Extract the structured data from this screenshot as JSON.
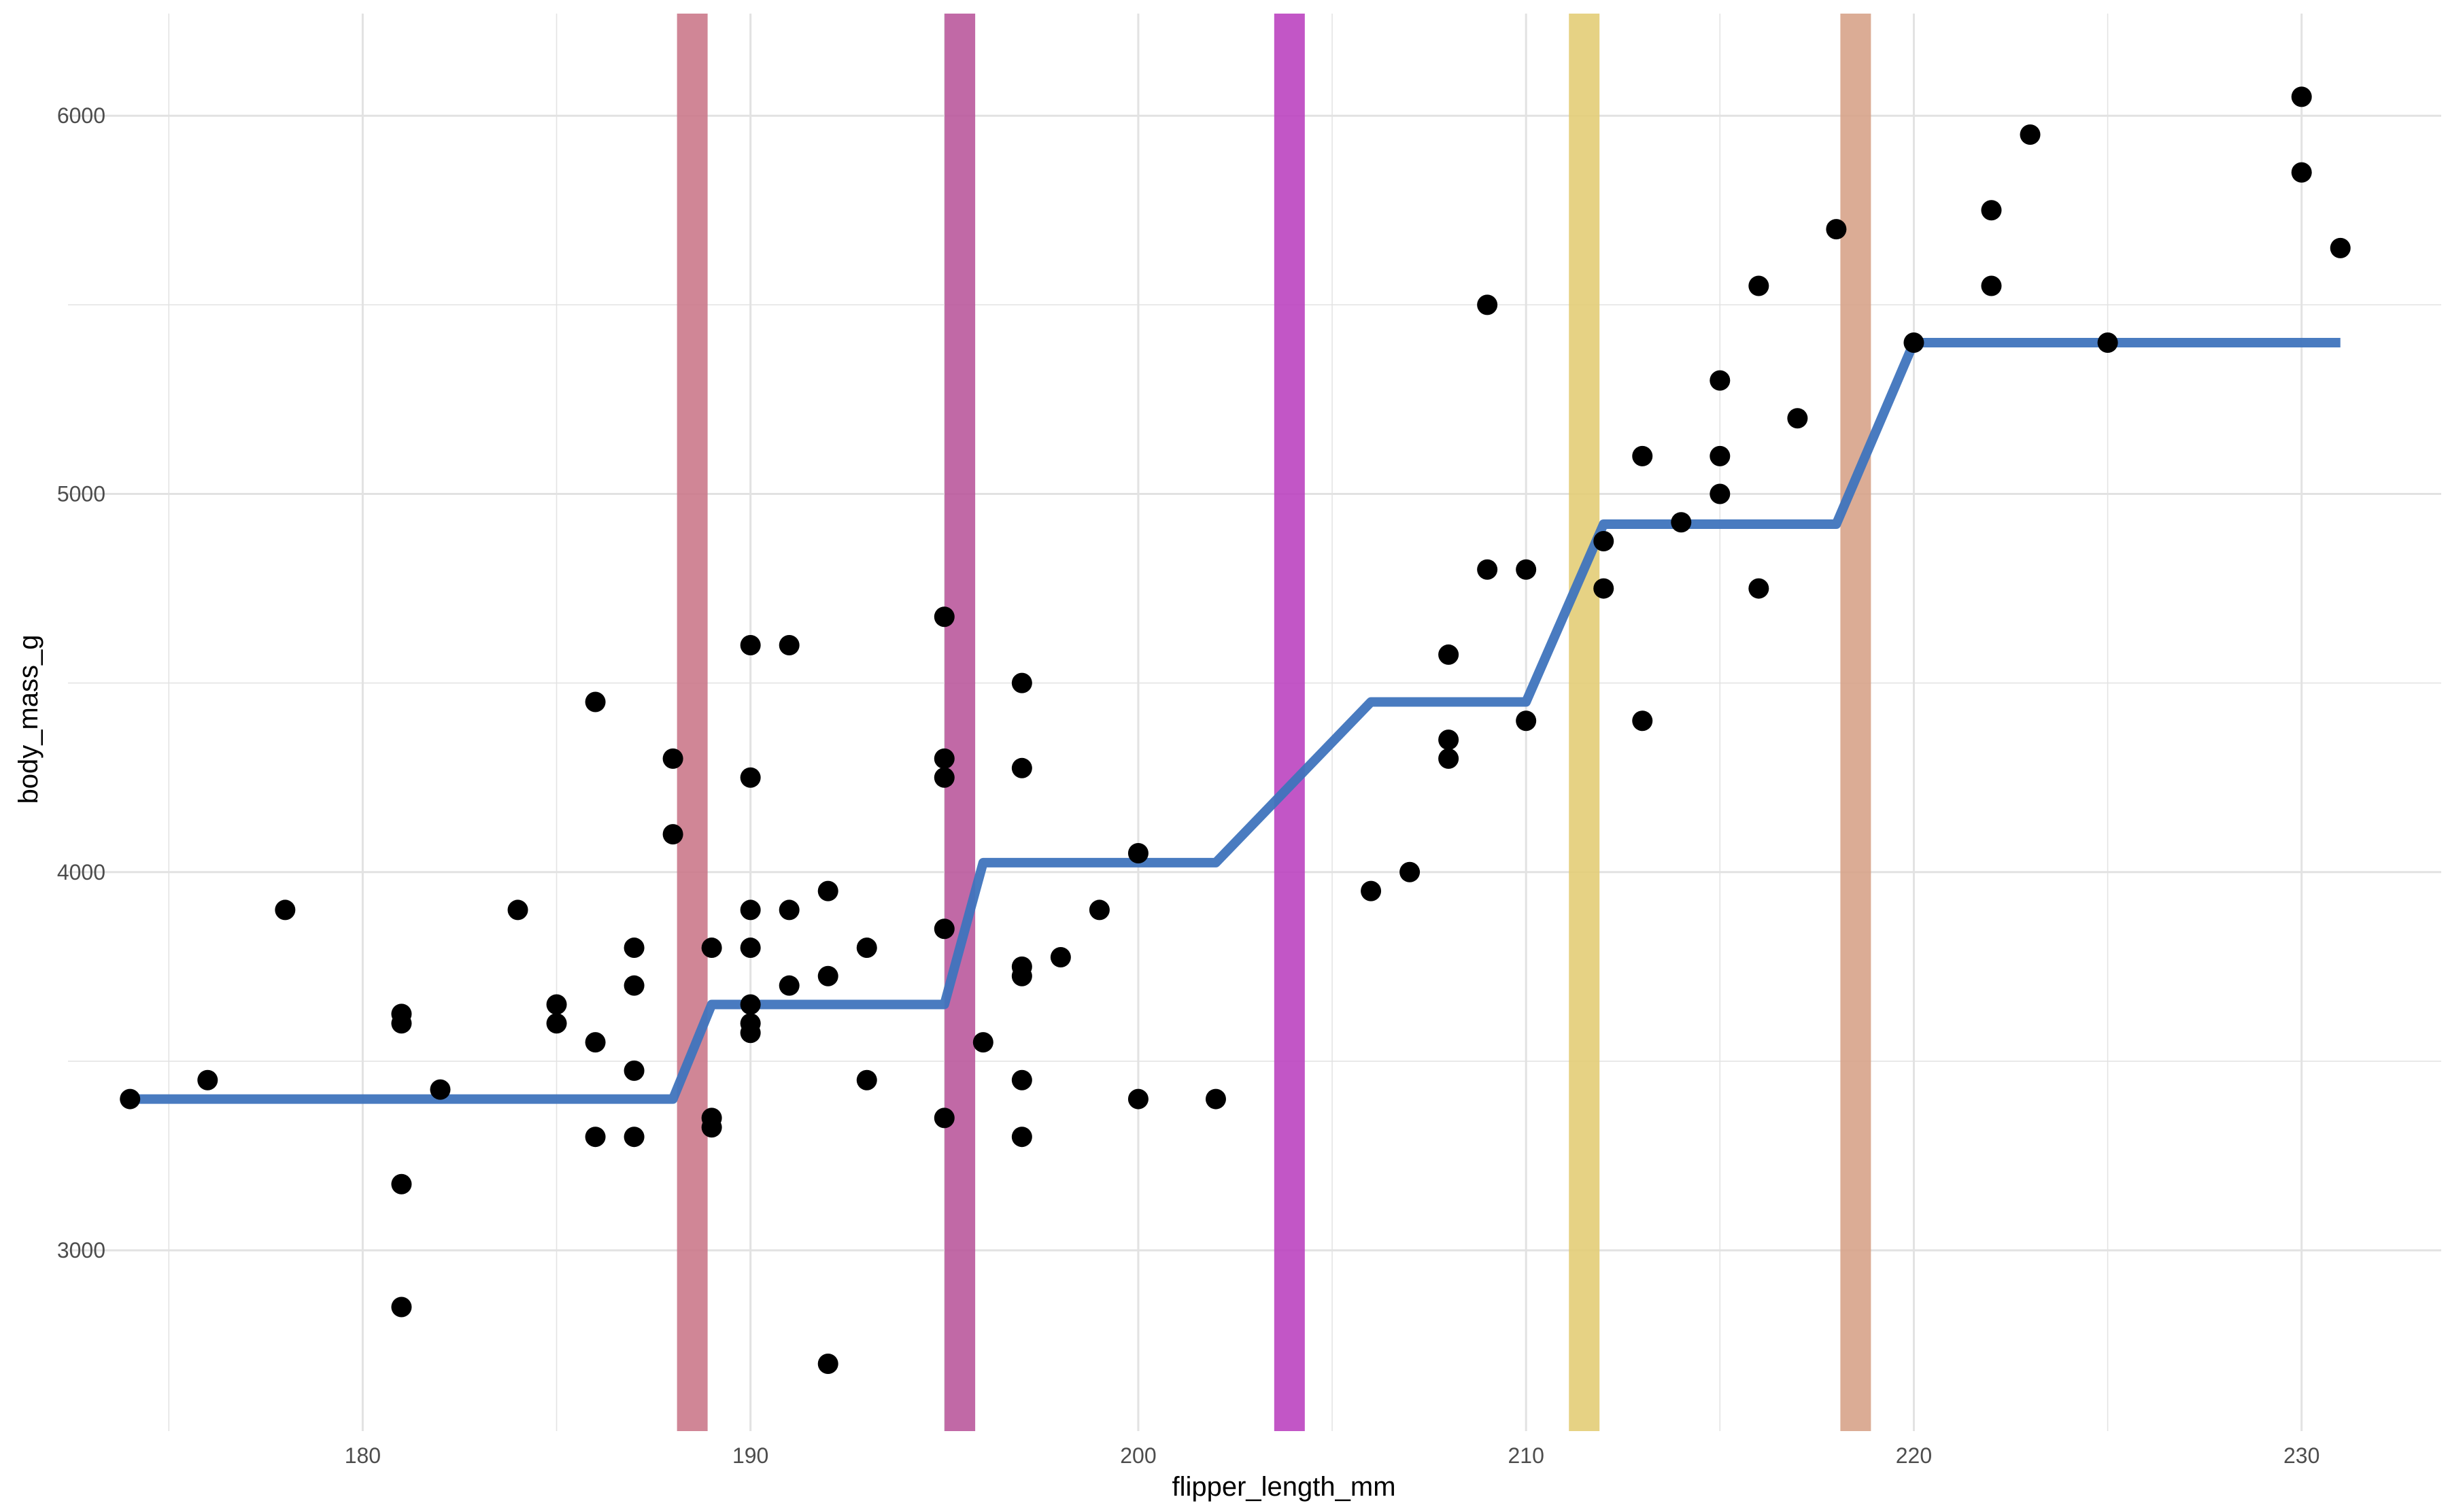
{
  "chart_data": {
    "type": "scatter",
    "title": "",
    "xlabel": "flipper_length_mm",
    "ylabel": "body_mass_g",
    "xlim": [
      172.4,
      233.6
    ],
    "ylim": [
      2522,
      6270
    ],
    "x_ticks": [
      180,
      190,
      200,
      210,
      220,
      230
    ],
    "y_ticks": [
      3000,
      4000,
      5000,
      6000
    ],
    "grid": true,
    "legend": "none",
    "points": [
      [
        174,
        3400
      ],
      [
        176,
        3450
      ],
      [
        178,
        3900
      ],
      [
        181,
        3625
      ],
      [
        181,
        3600
      ],
      [
        181,
        3175
      ],
      [
        181,
        2850
      ],
      [
        182,
        3425
      ],
      [
        184,
        3900
      ],
      [
        185,
        3650
      ],
      [
        185,
        3600
      ],
      [
        186,
        4450
      ],
      [
        186,
        3550
      ],
      [
        186,
        3300
      ],
      [
        187,
        3800
      ],
      [
        187,
        3700
      ],
      [
        187,
        3475
      ],
      [
        187,
        3300
      ],
      [
        188,
        4300
      ],
      [
        188,
        4100
      ],
      [
        189,
        3800
      ],
      [
        189,
        3350
      ],
      [
        189,
        3325
      ],
      [
        190,
        4600
      ],
      [
        190,
        4250
      ],
      [
        190,
        3900
      ],
      [
        190,
        3800
      ],
      [
        190,
        3650
      ],
      [
        190,
        3600
      ],
      [
        190,
        3575
      ],
      [
        191,
        4600
      ],
      [
        191,
        3900
      ],
      [
        191,
        3700
      ],
      [
        192,
        3950
      ],
      [
        192,
        3725
      ],
      [
        192,
        2700
      ],
      [
        193,
        3800
      ],
      [
        193,
        3450
      ],
      [
        195,
        4675
      ],
      [
        195,
        4300
      ],
      [
        195,
        4250
      ],
      [
        195,
        3850
      ],
      [
        195,
        3350
      ],
      [
        196,
        3550
      ],
      [
        197,
        4500
      ],
      [
        197,
        4275
      ],
      [
        197,
        3750
      ],
      [
        197,
        3725
      ],
      [
        197,
        3450
      ],
      [
        197,
        3300
      ],
      [
        198,
        3775
      ],
      [
        199,
        3900
      ],
      [
        200,
        4050
      ],
      [
        200,
        3400
      ],
      [
        202,
        3400
      ],
      [
        206,
        3950
      ],
      [
        207,
        4000
      ],
      [
        208,
        4575
      ],
      [
        208,
        4350
      ],
      [
        208,
        4300
      ],
      [
        209,
        5500
      ],
      [
        209,
        4800
      ],
      [
        210,
        4800
      ],
      [
        210,
        4400
      ],
      [
        212,
        4875
      ],
      [
        212,
        4750
      ],
      [
        213,
        5100
      ],
      [
        213,
        4400
      ],
      [
        214,
        4925
      ],
      [
        215,
        5300
      ],
      [
        215,
        5100
      ],
      [
        215,
        5000
      ],
      [
        216,
        5550
      ],
      [
        216,
        4750
      ],
      [
        217,
        5200
      ],
      [
        218,
        5700
      ],
      [
        220,
        5400
      ],
      [
        222,
        5750
      ],
      [
        222,
        5550
      ],
      [
        223,
        5950
      ],
      [
        225,
        5400
      ],
      [
        230,
        6050
      ],
      [
        230,
        5850
      ],
      [
        231,
        5650
      ]
    ],
    "fit_line": {
      "color": "#3f74bd",
      "points": [
        [
          174,
          3400
        ],
        [
          188,
          3400
        ],
        [
          189,
          3650
        ],
        [
          195,
          3650
        ],
        [
          196,
          4025
        ],
        [
          202,
          4025
        ],
        [
          206,
          4450
        ],
        [
          210,
          4450
        ],
        [
          212,
          4920
        ],
        [
          218,
          4920
        ],
        [
          220,
          5400
        ],
        [
          231,
          5400
        ]
      ]
    },
    "bands": [
      {
        "x": 188.5,
        "color": "#c97588"
      },
      {
        "x": 195.4,
        "color": "#b8549a"
      },
      {
        "x": 203.9,
        "color": "#ba3fbe"
      },
      {
        "x": 211.5,
        "color": "#e2cc73"
      },
      {
        "x": 218.5,
        "color": "#d6a086"
      }
    ],
    "point_color": "#000000",
    "grid_color": "#e2e2e2"
  }
}
